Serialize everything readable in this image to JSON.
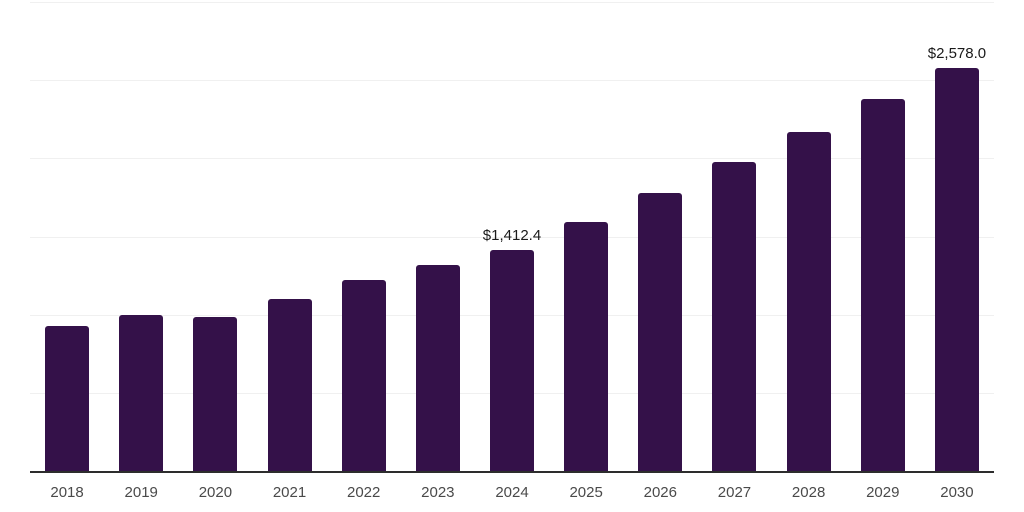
{
  "chart_data": {
    "type": "bar",
    "title": "",
    "xlabel": "",
    "ylabel": "",
    "categories": [
      "2018",
      "2019",
      "2020",
      "2021",
      "2022",
      "2023",
      "2024",
      "2025",
      "2026",
      "2027",
      "2028",
      "2029",
      "2030"
    ],
    "values": [
      925,
      1000,
      985,
      1100,
      1225,
      1320,
      1412.4,
      1595,
      1780,
      1975,
      2170,
      2380,
      2578
    ],
    "data_labels": [
      {
        "category": "2024",
        "text": "$1,412.4"
      },
      {
        "category": "2030",
        "text": "$2,578.0"
      }
    ],
    "ylim": [
      0,
      3000
    ],
    "gridline_interval": 500,
    "grid": "horizontal",
    "legend_position": "none",
    "y_axis_labels_visible": false,
    "colors": {
      "bar": "#341149",
      "axis_line": "#2d2d2d",
      "gridline": "#f0f0f0",
      "tick_label": "#4a4a4a",
      "data_label": "#1a1a1a",
      "background": "#ffffff"
    }
  }
}
